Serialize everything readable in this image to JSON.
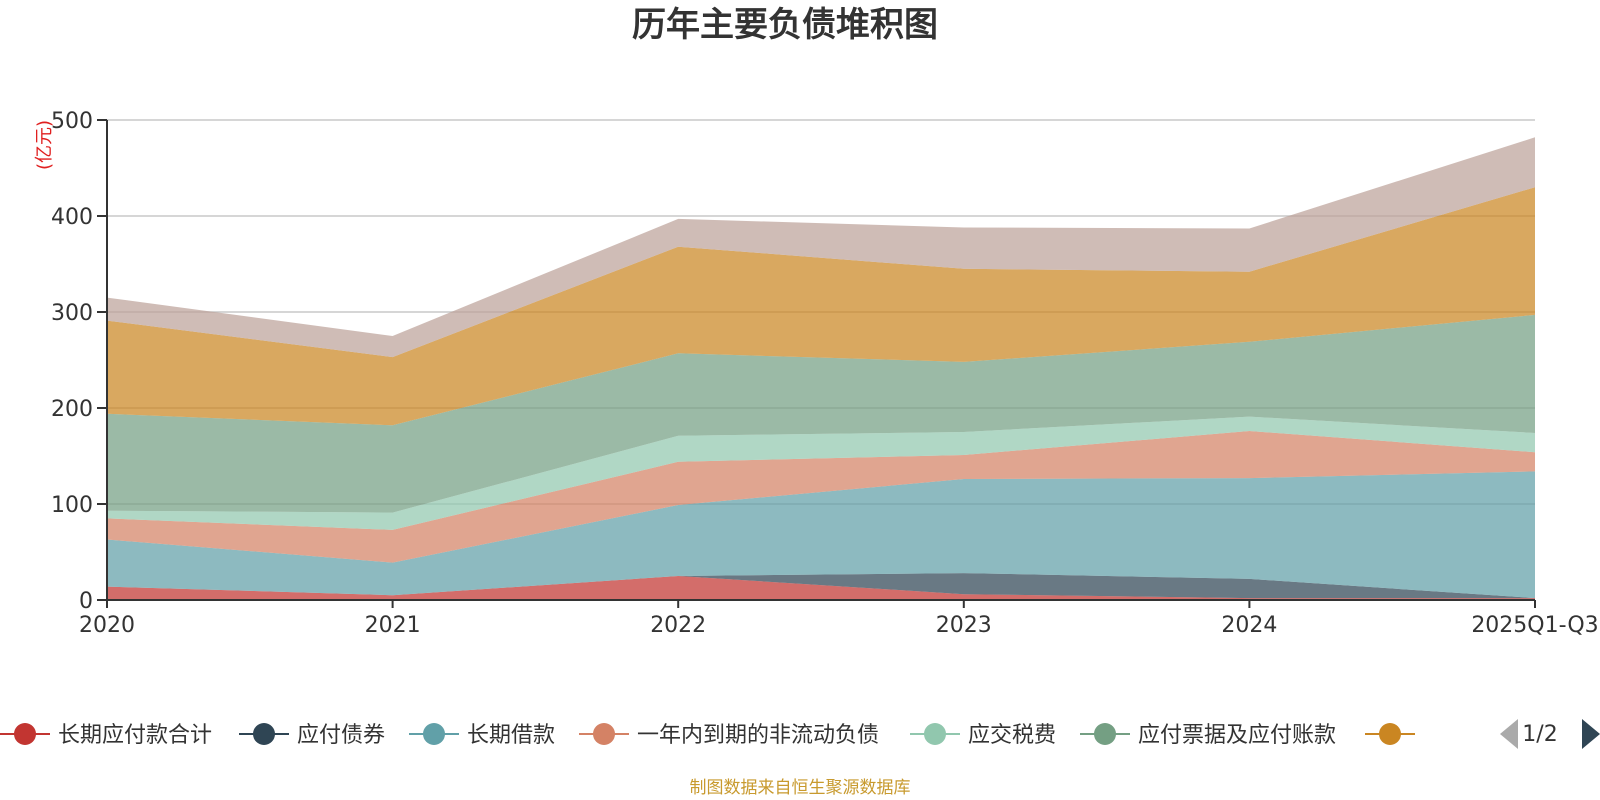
{
  "chart_data": {
    "type": "area",
    "stacked": true,
    "title": "历年主要负债堆积图",
    "ylabel": "(亿元)",
    "xlabel": "",
    "ylim": [
      0,
      500
    ],
    "yticks": [
      0,
      100,
      200,
      300,
      400,
      500
    ],
    "categories": [
      "2020",
      "2021",
      "2022",
      "2023",
      "2024",
      "2025Q1-Q3"
    ],
    "grid": true,
    "legend_position": "bottom",
    "series": [
      {
        "name": "长期应付款合计",
        "color": "#c23531",
        "values": [
          14,
          5,
          25,
          6,
          2,
          2
        ]
      },
      {
        "name": "应付债券",
        "color": "#2f4554",
        "values": [
          0,
          0,
          0,
          22,
          20,
          0
        ]
      },
      {
        "name": "长期借款",
        "color": "#61a0a8",
        "values": [
          49,
          34,
          74,
          98,
          105,
          132
        ]
      },
      {
        "name": "一年内到期的非流动负债",
        "color": "#d48265",
        "values": [
          22,
          34,
          45,
          25,
          49,
          20
        ]
      },
      {
        "name": "应交税费",
        "color": "#91c7ae",
        "values": [
          8,
          18,
          27,
          24,
          15,
          20
        ]
      },
      {
        "name": "应付票据及应付账款",
        "color": "#749f83",
        "values": [
          101,
          91,
          86,
          73,
          78,
          123
        ]
      },
      {
        "name": "",
        "color": "#ca8622",
        "values": [
          97,
          71,
          111,
          97,
          73,
          133
        ]
      },
      {
        "name": "",
        "color": "#bda29a",
        "values": [
          24,
          22,
          29,
          43,
          45,
          52
        ]
      }
    ]
  },
  "legend": {
    "visible_count": 7,
    "page_indicator": "1/2"
  },
  "source_note": "制图数据来自恒生聚源数据库"
}
